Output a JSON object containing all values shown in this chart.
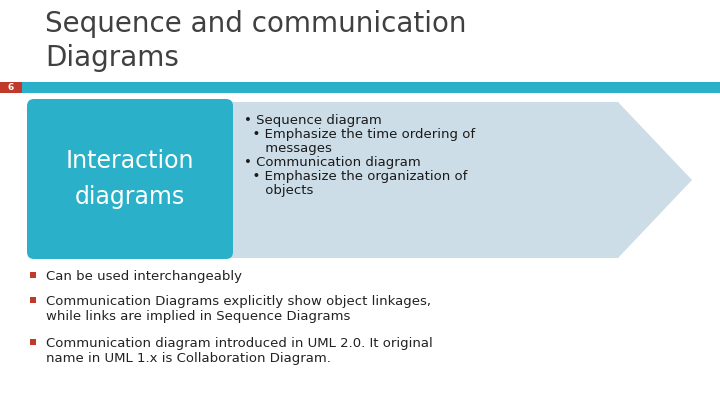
{
  "title_line1": "Sequence and communication",
  "title_line2": "Diagrams",
  "title_color": "#404040",
  "title_fontsize": 20,
  "bg_color": "#ffffff",
  "slide_number": "6",
  "slide_number_bg": "#c0392b",
  "divider_color": "#2ab0c8",
  "box_color": "#2ab0c8",
  "arrow_color": "#ccdde8",
  "box_text": "Interaction\ndiagrams",
  "box_text_color": "#ffffff",
  "arrow_bullet_lines": [
    "• Sequence diagram",
    "  • Emphasize the time ordering of",
    "     messages",
    "• Communication diagram",
    "  • Emphasize the organization of",
    "     objects"
  ],
  "bullet_points": [
    "Can be used interchangeably",
    "Communication Diagrams explicitly show object linkages,\nwhile links are implied in Sequence Diagrams",
    "Communication diagram introduced in UML 2.0. It original\nname in UML 1.x is Collaboration Diagram."
  ],
  "bullet_color": "#222222",
  "bullet_marker_color": "#c0392b",
  "bullet_fontsize": 9.5,
  "arrow_text_fontsize": 9.5
}
